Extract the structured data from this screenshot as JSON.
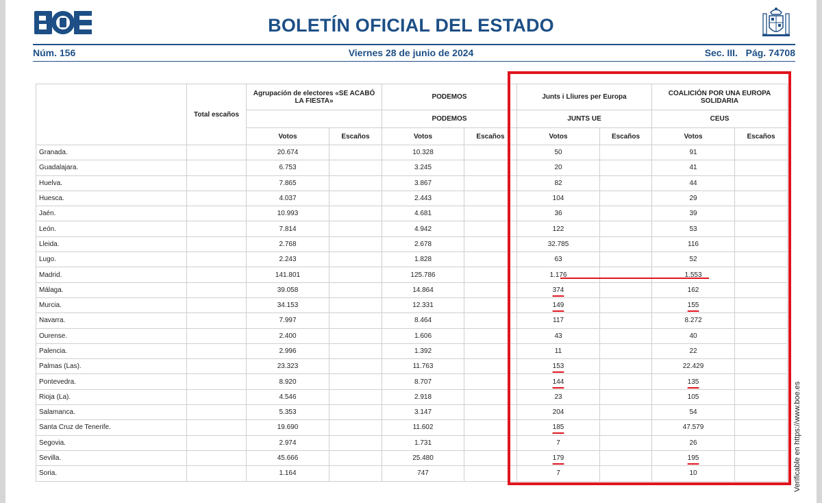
{
  "header": {
    "logo_text": "BOE",
    "title": "BOLETÍN OFICIAL DEL ESTADO",
    "number": "Núm. 156",
    "date": "Viernes 28 de junio de 2024",
    "section_page": "Sec. III.   Pág. 74708"
  },
  "side_note": "Verificable en https://www.boe.es",
  "table": {
    "total_label": "Total escaños",
    "groups": [
      {
        "title": "Agrupación de electores «SE ACABÓ LA FIESTA»",
        "subtitle": ""
      },
      {
        "title": "PODEMOS",
        "subtitle": "PODEMOS"
      },
      {
        "title": "Junts i Lliures per Europa",
        "subtitle": "JUNTS UE"
      },
      {
        "title": "COALICIÓN POR UNA EUROPA SOLIDARIA",
        "subtitle": "CEUS"
      }
    ],
    "col_votos": "Votos",
    "col_escanos": "Escaños",
    "rows": [
      {
        "p": "Granada.",
        "s": "20.674",
        "po": "10.328",
        "j": "50",
        "c": "91"
      },
      {
        "p": "Guadalajara.",
        "s": "6.753",
        "po": "3.245",
        "j": "20",
        "c": "41"
      },
      {
        "p": "Huelva.",
        "s": "7.865",
        "po": "3.867",
        "j": "82",
        "c": "44"
      },
      {
        "p": "Huesca.",
        "s": "4.037",
        "po": "2.443",
        "j": "104",
        "c": "29"
      },
      {
        "p": "Jaén.",
        "s": "10.993",
        "po": "4.681",
        "j": "36",
        "c": "39"
      },
      {
        "p": "León.",
        "s": "7.814",
        "po": "4.942",
        "j": "122",
        "c": "53"
      },
      {
        "p": "Lleida.",
        "s": "2.768",
        "po": "2.678",
        "j": "32.785",
        "c": "116"
      },
      {
        "p": "Lugo.",
        "s": "2.243",
        "po": "1.828",
        "j": "63",
        "c": "52"
      },
      {
        "p": "Madrid.",
        "s": "141.801",
        "po": "125.786",
        "j": "1.176",
        "c": "1.553"
      },
      {
        "p": "Málaga.",
        "s": "39.058",
        "po": "14.864",
        "j": "374",
        "c": "162"
      },
      {
        "p": "Murcia.",
        "s": "34.153",
        "po": "12.331",
        "j": "149",
        "c": "155"
      },
      {
        "p": "Navarra.",
        "s": "7.997",
        "po": "8.464",
        "j": "117",
        "c": "8.272"
      },
      {
        "p": "Ourense.",
        "s": "2.400",
        "po": "1.606",
        "j": "43",
        "c": "40"
      },
      {
        "p": "Palencia.",
        "s": "2.996",
        "po": "1.392",
        "j": "11",
        "c": "22"
      },
      {
        "p": "Palmas (Las).",
        "s": "23.323",
        "po": "11.763",
        "j": "153",
        "c": "22.429"
      },
      {
        "p": "Pontevedra.",
        "s": "8.920",
        "po": "8.707",
        "j": "144",
        "c": "135"
      },
      {
        "p": "Rioja (La).",
        "s": "4.546",
        "po": "2.918",
        "j": "23",
        "c": "105"
      },
      {
        "p": "Salamanca.",
        "s": "5.353",
        "po": "3.147",
        "j": "204",
        "c": "54"
      },
      {
        "p": "Santa Cruz de Tenerife.",
        "s": "19.690",
        "po": "11.602",
        "j": "185",
        "c": "47.579"
      },
      {
        "p": "Segovia.",
        "s": "2.974",
        "po": "1.731",
        "j": "7",
        "c": "26"
      },
      {
        "p": "Sevilla.",
        "s": "45.666",
        "po": "25.480",
        "j": "179",
        "c": "195"
      },
      {
        "p": "Soria.",
        "s": "1.164",
        "po": "747",
        "j": "7",
        "c": "10"
      }
    ]
  },
  "annotations": {
    "color": "#e0141e",
    "underlined_junts_rows": [
      "Málaga.",
      "Murcia.",
      "Palmas (Las).",
      "Pontevedra.",
      "Santa Cruz de Tenerife.",
      "Sevilla."
    ],
    "underlined_ceus_rows": [
      "Murcia.",
      "Pontevedra.",
      "Sevilla."
    ]
  }
}
